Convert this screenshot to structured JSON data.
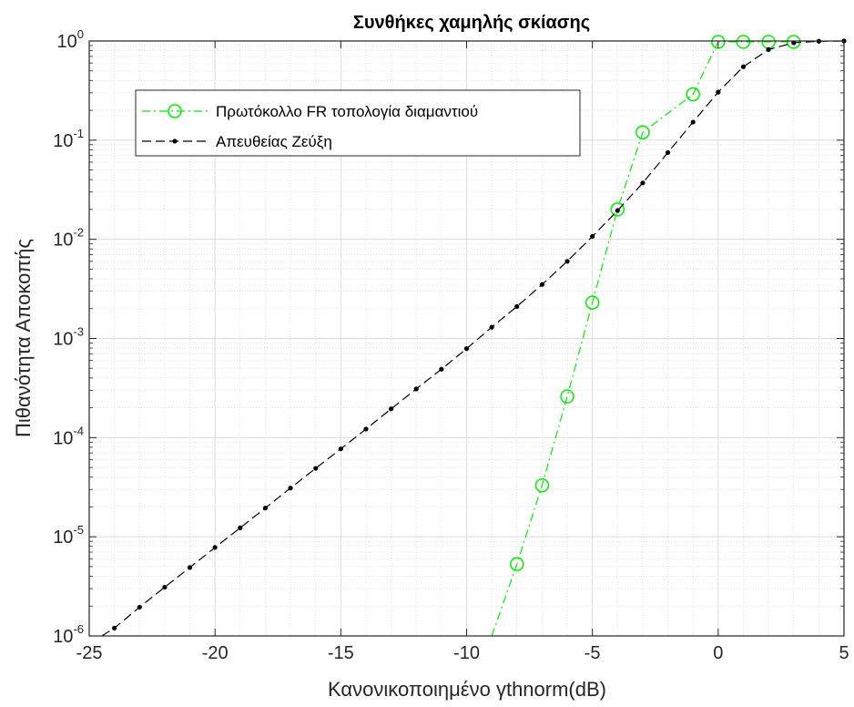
{
  "chart_data": {
    "type": "line",
    "title": "Συνθήκες χαμηλής σκίασης",
    "xlabel": "Κανονικοποιημένο γthnorm(dB)",
    "ylabel": "Πιθανότητα Αποκοπής",
    "xlim": [
      -25,
      5
    ],
    "ylim": [
      1e-06,
      1
    ],
    "yscale": "log",
    "grid": true,
    "minor_grid": true,
    "legend_position": "top-left",
    "xticks": [
      {
        "value": -25,
        "label": "-25"
      },
      {
        "value": -20,
        "label": "-20"
      },
      {
        "value": -15,
        "label": "-15"
      },
      {
        "value": -10,
        "label": "-10"
      },
      {
        "value": -5,
        "label": "-5"
      },
      {
        "value": 0,
        "label": "0"
      },
      {
        "value": 5,
        "label": "5"
      }
    ],
    "yticks": [
      {
        "exp": -6,
        "base": "10",
        "sup": "-6"
      },
      {
        "exp": -5,
        "base": "10",
        "sup": "-5"
      },
      {
        "exp": -4,
        "base": "10",
        "sup": "-4"
      },
      {
        "exp": -3,
        "base": "10",
        "sup": "-3"
      },
      {
        "exp": -2,
        "base": "10",
        "sup": "-2"
      },
      {
        "exp": -1,
        "base": "10",
        "sup": "-1"
      },
      {
        "exp": 0,
        "base": "10",
        "sup": "0"
      }
    ],
    "series": [
      {
        "name": "Πρωτόκολλο FR τοπολογία διαμαντιού",
        "color": "#00ee00",
        "line_style": "dash-dot",
        "marker": "open-circle",
        "x": [
          -9,
          -8,
          -7,
          -6,
          -5,
          -4,
          -3,
          -1,
          0,
          1,
          2,
          3
        ],
        "y": [
          1e-06,
          5.3e-06,
          3.3e-05,
          0.00026,
          0.0023,
          0.02,
          0.12,
          0.29,
          0.98,
          0.98,
          0.98,
          0.98
        ],
        "marker_points": [
          1,
          2,
          3,
          4,
          5,
          6,
          7,
          8,
          9,
          10,
          11
        ]
      },
      {
        "name": "Απευθείας Ζεύξη",
        "color": "#000000",
        "line_style": "dashed",
        "marker": "dot",
        "x": [
          -24.5,
          -24,
          -23,
          -22,
          -21,
          -20,
          -19,
          -18,
          -17,
          -16,
          -15,
          -14,
          -13,
          -12,
          -11,
          -10,
          -9,
          -8,
          -7,
          -6,
          -5,
          -4,
          -3,
          -2,
          -1,
          0,
          1,
          2,
          3,
          4,
          5
        ],
        "y": [
          1e-06,
          1.2e-06,
          1.95e-06,
          3.1e-06,
          4.9e-06,
          7.8e-06,
          1.23e-05,
          1.95e-05,
          3.1e-05,
          4.9e-05,
          7.7e-05,
          0.000122,
          0.000195,
          0.00031,
          0.00049,
          0.00079,
          0.0013,
          0.0021,
          0.0035,
          0.006,
          0.0107,
          0.0195,
          0.037,
          0.075,
          0.152,
          0.305,
          0.55,
          0.82,
          0.96,
          0.995,
          1.0
        ],
        "marker_points": [
          1,
          2,
          3,
          4,
          5,
          6,
          7,
          8,
          9,
          10,
          11,
          12,
          13,
          14,
          15,
          16,
          17,
          18,
          19,
          20,
          21,
          22,
          23,
          24,
          25,
          26,
          27,
          28,
          29,
          30
        ]
      }
    ]
  }
}
